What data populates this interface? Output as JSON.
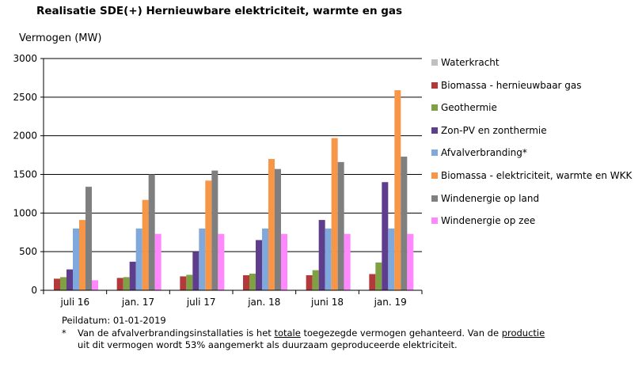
{
  "title": "Realisatie SDE(+) Hernieuwbare elektriciteit, warmte en gas",
  "y_axis_label": "Vermogen (MW)",
  "chart_data": {
    "type": "bar",
    "title": "Realisatie SDE(+) Hernieuwbare elektriciteit, warmte en gas",
    "ylabel": "Vermogen (MW)",
    "xlabel": "",
    "ylim": [
      0,
      3000
    ],
    "yticks": [
      0,
      500,
      1000,
      1500,
      2000,
      2500,
      3000
    ],
    "grid": true,
    "legend_position": "right",
    "categories": [
      "juli 16",
      "jan. 17",
      "juli 17",
      "jan. 18",
      "juni 18",
      "jan. 19"
    ],
    "series": [
      {
        "name": "Waterkracht",
        "color": "#c0c0c0",
        "values": [
          0,
          0,
          0,
          0,
          0,
          0
        ]
      },
      {
        "name": "Biomassa - hernieuwbaar gas",
        "color": "#b23a3a",
        "values": [
          150,
          160,
          180,
          195,
          195,
          210
        ]
      },
      {
        "name": "Geothermie",
        "color": "#7fa043",
        "values": [
          170,
          170,
          200,
          215,
          260,
          360
        ]
      },
      {
        "name": "Zon-PV en zonthermie",
        "color": "#5e3d8c",
        "values": [
          270,
          370,
          500,
          650,
          910,
          1400
        ]
      },
      {
        "name": "Afvalverbranding*",
        "color": "#7fa8dc",
        "values": [
          800,
          800,
          800,
          800,
          800,
          800
        ]
      },
      {
        "name": "Biomassa - elektriciteit, warmte en WKK",
        "color": "#f79646",
        "values": [
          910,
          1170,
          1420,
          1700,
          1970,
          2590
        ]
      },
      {
        "name": "Windenergie op land",
        "color": "#7f7f7f",
        "values": [
          1340,
          1500,
          1550,
          1570,
          1660,
          1730
        ]
      },
      {
        "name": "Windenergie op zee",
        "color": "#ff88ff",
        "values": [
          130,
          730,
          730,
          730,
          730,
          730
        ]
      }
    ]
  },
  "footnote": {
    "peildatum": "Peildatum: 01-01-2019",
    "star": "*",
    "line1_pre": "Van de afvalverbrandingsinstallaties is het ",
    "line1_u1": "totale",
    "line1_mid": " toegezegde vermogen gehanteerd. Van de ",
    "line1_u2": "productie",
    "line2": "uit dit vermogen wordt 53% aangemerkt als duurzaam geproduceerde elektriciteit."
  }
}
